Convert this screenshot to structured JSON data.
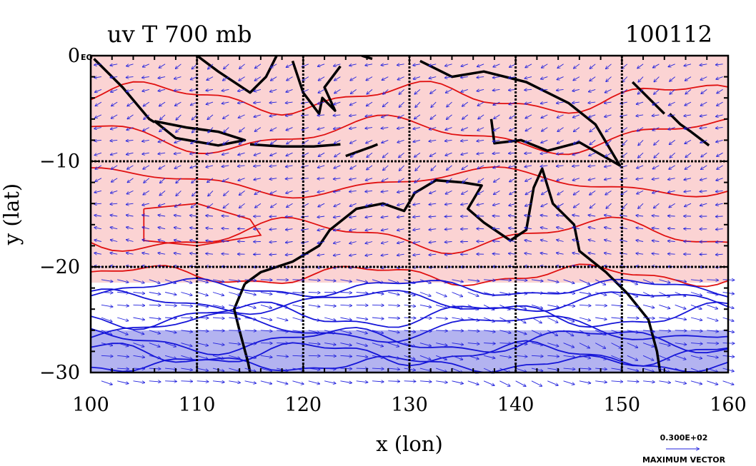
{
  "chart_data": {
    "type": "vector-field-contour-map",
    "title": "uv T 700 mb",
    "date_label": "100112",
    "xlabel": "x (lon)",
    "ylabel": "y (lat)",
    "xlim": [
      100,
      160
    ],
    "ylim": [
      -30,
      0
    ],
    "x_ticks": [
      "100",
      "110",
      "120",
      "130",
      "140",
      "150",
      "160"
    ],
    "y_ticks": [
      "0",
      "−10",
      "−20",
      "−30"
    ],
    "y_top_suffix": "EQ",
    "grid": true,
    "grid_lon": [
      110,
      120,
      130,
      140,
      150
    ],
    "grid_lat": [
      -10,
      -20
    ],
    "shading": [
      {
        "name": "warm",
        "lat_range": [
          -21.5,
          0
        ],
        "color": "#fbd3d3"
      },
      {
        "name": "neutral",
        "lat_range": [
          -26,
          -21.5
        ],
        "color": "#ffffff"
      },
      {
        "name": "cool",
        "lat_range": [
          -30,
          -26
        ],
        "color": "#b3b3f0"
      }
    ],
    "contour_colors": {
      "warm": "#e01010",
      "cool": "#1515d8"
    },
    "vector_color": "#2222dd",
    "coastline_color": "#000000",
    "reference_vector": {
      "value": "0.300E+02",
      "label": "MAXIMUM VECTOR"
    }
  }
}
